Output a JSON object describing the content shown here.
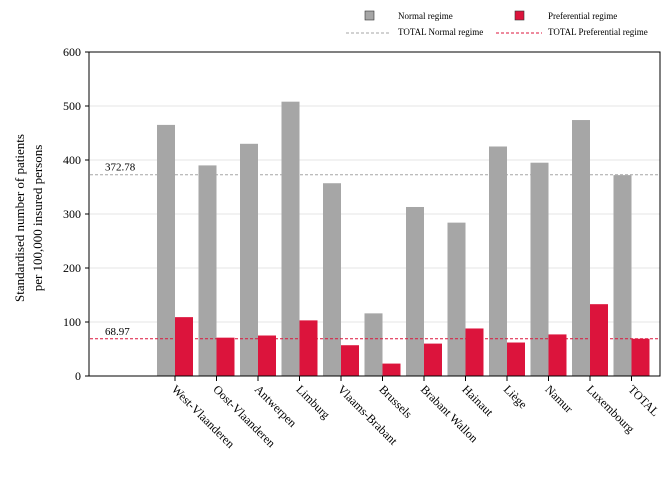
{
  "chart_data": {
    "type": "bar",
    "ylabel_line1": "Standardised number of patients",
    "ylabel_line2": "per 100,000 insured persons",
    "xlabel": "",
    "title": "",
    "ylim": [
      0,
      600
    ],
    "yticks": [
      0,
      100,
      200,
      300,
      400,
      500,
      600
    ],
    "grid": true,
    "legend_position": "top-right",
    "categories": [
      "West-Vlaanderen",
      "Oost-Vlaanderen",
      "Antwerpen",
      "Limburg",
      "Vlaams-Brabant",
      "Brussels",
      "Brabant Wallon",
      "Hainaut",
      "Liège",
      "Namur",
      "Luxembourg",
      "TOTAL"
    ],
    "series": [
      {
        "name": "Normal regime",
        "color": "#a6a6a6",
        "values": [
          465,
          390,
          430,
          508,
          357,
          116,
          313,
          284,
          425,
          395,
          474,
          372
        ]
      },
      {
        "name": "Preferential regime",
        "color": "#dc143c",
        "values": [
          109,
          71,
          75,
          103,
          57,
          23,
          60,
          88,
          62,
          77,
          133,
          69
        ]
      }
    ],
    "reference_lines": [
      {
        "name": "TOTAL Normal regime",
        "value": 372.78,
        "label": "372.78",
        "color": "#a6a6a6"
      },
      {
        "name": "TOTAL Preferential regime",
        "value": 68.97,
        "label": "68.97",
        "color": "#dc143c"
      }
    ]
  }
}
